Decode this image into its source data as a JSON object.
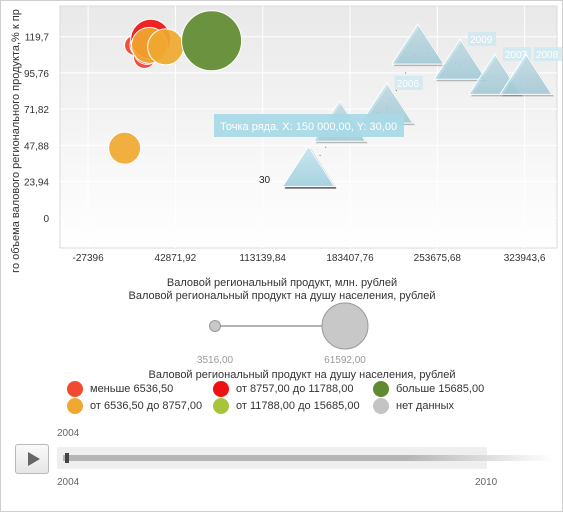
{
  "chart_data": {
    "type": "bubble",
    "x_ticks": [
      "-27396",
      "42871,92",
      "113139,84",
      "183407,76",
      "253675,68",
      "323943,6"
    ],
    "y_ticks": [
      "0",
      "23,94",
      "47,88",
      "71,82",
      "95,76",
      "119,7"
    ],
    "xlim": [
      -50000,
      350000
    ],
    "ylim": [
      -20,
      140
    ],
    "y_axis_title": "го объема валового регионального продукта,% к пр",
    "x_axis_title": "Валовой региональный продукт, млн. рублей",
    "size_axis_title": "Валовой региональный продукт на душу населения, рублей",
    "size_scale": {
      "min_label": "3516,00",
      "max_label": "61592,00"
    },
    "tooltip": "Точка ряда. X: 150 000,00, Y: 30,00",
    "point_label": "30",
    "bubbles": [
      {
        "x": 2000,
        "y": 46,
        "size": 16,
        "color": "#f0a830"
      },
      {
        "x": 10000,
        "y": 114,
        "size": 10,
        "color": "#f04030"
      },
      {
        "x": 16000,
        "y": 114,
        "size": 12,
        "color": "#f04030"
      },
      {
        "x": 18000,
        "y": 106,
        "size": 11,
        "color": "#f04030"
      },
      {
        "x": 20000,
        "y": 110,
        "size": 13,
        "color": "#f04030"
      },
      {
        "x": 23000,
        "y": 118,
        "size": 20,
        "color": "#ee1111"
      },
      {
        "x": 22000,
        "y": 114,
        "size": 18,
        "color": "#f0a830"
      },
      {
        "x": 35000,
        "y": 113,
        "size": 18,
        "color": "#f0a830"
      },
      {
        "x": 72000,
        "y": 117,
        "size": 30,
        "color": "#5f8a30"
      }
    ],
    "triangles": [
      {
        "x": 150000,
        "y": 30,
        "label": ""
      },
      {
        "x": 175000,
        "y": 60,
        "label": ""
      },
      {
        "x": 213000,
        "y": 72,
        "label": "2006"
      },
      {
        "x": 238000,
        "y": 111,
        "label": ""
      },
      {
        "x": 272000,
        "y": 101,
        "label": "2009"
      },
      {
        "x": 300000,
        "y": 91,
        "label": "2007"
      },
      {
        "x": 325000,
        "y": 91,
        "label": "2008"
      }
    ],
    "trail": [
      {
        "x": 150000,
        "y": 30
      },
      {
        "x": 175000,
        "y": 60
      },
      {
        "x": 213000,
        "y": 72
      },
      {
        "x": 238000,
        "y": 111
      },
      {
        "x": 272000,
        "y": 101
      },
      {
        "x": 300000,
        "y": 91
      }
    ]
  },
  "legend": {
    "title": "Валовой региональный продукт на душу населения, рублей",
    "items": [
      {
        "label": "меньше 6536,50",
        "color": "#f04a30"
      },
      {
        "label": "от 8757,00 до 11788,00",
        "color": "#ee1111"
      },
      {
        "label": "больше 15685,00",
        "color": "#5f8a30"
      },
      {
        "label": "от 6536,50 до 8757,00",
        "color": "#f0a830"
      },
      {
        "label": "от 11788,00 до 15685,00",
        "color": "#a8c43c"
      },
      {
        "label": "нет данных",
        "color": "#c4c4c4"
      }
    ]
  },
  "player": {
    "current_year": "2004",
    "start_year": "2004",
    "end_year": "2010"
  }
}
